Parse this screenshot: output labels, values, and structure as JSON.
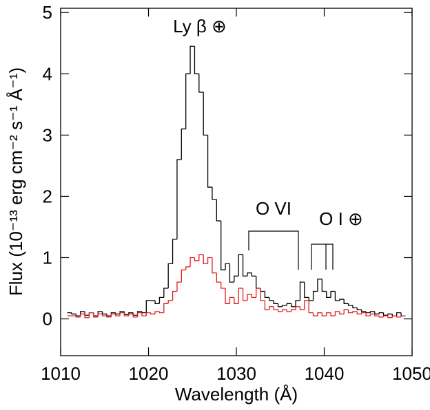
{
  "chart_data": {
    "type": "step",
    "xlabel": "Wavelength (Å)",
    "ylabel": "Flux (10⁻¹³ erg cm⁻² s⁻¹ Å⁻¹)",
    "annotations": [
      "Ly β ⊕",
      "O VI",
      "O I ⊕"
    ],
    "x": [
      1011,
      1011.5,
      1012,
      1012.5,
      1013,
      1013.5,
      1014,
      1014.5,
      1015,
      1015.5,
      1016,
      1016.5,
      1017,
      1017.5,
      1018,
      1018.5,
      1019,
      1019.5,
      1020,
      1020.5,
      1021,
      1021.5,
      1022,
      1022.5,
      1023,
      1023.5,
      1024,
      1024.5,
      1025,
      1025.5,
      1026,
      1026.5,
      1027,
      1027.5,
      1028,
      1028.5,
      1029,
      1029.5,
      1030,
      1030.5,
      1031,
      1031.5,
      1032,
      1032.5,
      1033,
      1033.5,
      1034,
      1034.5,
      1035,
      1035.5,
      1036,
      1036.5,
      1037,
      1037.5,
      1038,
      1038.5,
      1039,
      1039.5,
      1040,
      1040.5,
      1041,
      1041.5,
      1042,
      1042.5,
      1043,
      1043.5,
      1044,
      1044.5,
      1045,
      1045.5,
      1046,
      1046.5,
      1047,
      1047.5,
      1048,
      1048.5,
      1049
    ],
    "series": [
      {
        "color": "#000000",
        "values": [
          0.1,
          0.08,
          0.05,
          0.12,
          0.06,
          0.1,
          0.05,
          0.12,
          0.08,
          0.05,
          0.1,
          0.08,
          0.12,
          0.07,
          0.1,
          0.06,
          0.12,
          0.1,
          0.3,
          0.3,
          0.25,
          0.35,
          0.5,
          0.9,
          1.3,
          2.6,
          3.1,
          4.0,
          4.45,
          4.0,
          3.7,
          3.0,
          2.15,
          1.95,
          1.6,
          0.8,
          0.9,
          0.6,
          0.7,
          1.05,
          0.7,
          0.75,
          0.7,
          0.5,
          0.45,
          0.35,
          0.3,
          0.25,
          0.2,
          0.22,
          0.25,
          0.2,
          0.3,
          0.6,
          0.35,
          0.3,
          0.45,
          0.65,
          0.45,
          0.35,
          0.45,
          0.3,
          0.32,
          0.25,
          0.22,
          0.18,
          0.15,
          0.12,
          0.1,
          0.12,
          0.08,
          0.1,
          0.06,
          0.08,
          0.05,
          0.1,
          0.05
        ]
      },
      {
        "color": "#e31a1c",
        "values": [
          0.05,
          0.05,
          0.03,
          0.08,
          0.02,
          0.1,
          0.03,
          0.08,
          0.05,
          0.03,
          0.08,
          0.05,
          0.1,
          0.05,
          0.08,
          0.03,
          0.1,
          0.05,
          0.1,
          0.08,
          0.12,
          0.1,
          0.25,
          0.3,
          0.45,
          0.6,
          0.8,
          0.85,
          1.0,
          0.95,
          1.05,
          0.9,
          1.0,
          0.75,
          0.6,
          0.5,
          0.25,
          0.35,
          0.25,
          0.5,
          0.3,
          0.4,
          0.35,
          0.5,
          0.3,
          0.15,
          0.2,
          0.15,
          0.12,
          0.15,
          0.12,
          0.15,
          0.2,
          0.15,
          0.3,
          0.1,
          0.05,
          0.1,
          0.05,
          0.1,
          0.05,
          0.12,
          0.08,
          0.15,
          0.1,
          0.12,
          0.08,
          0.1,
          0.05,
          0.08,
          0.05,
          0.03,
          0.05,
          0.02,
          0.05,
          0.03,
          0.05
        ]
      }
    ],
    "xlim": [
      1010,
      1050
    ],
    "xticks": [
      1010,
      1020,
      1030,
      1040,
      1050
    ],
    "ylim": [
      -0.6,
      5.07
    ],
    "yticks": [
      0,
      1,
      2,
      3,
      4,
      5
    ]
  }
}
